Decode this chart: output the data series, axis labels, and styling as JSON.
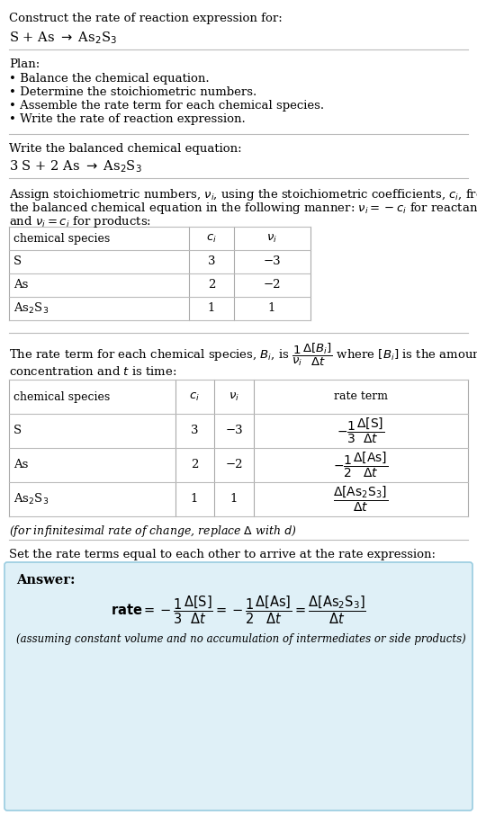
{
  "title_line1": "Construct the rate of reaction expression for:",
  "plan_header": "Plan:",
  "plan_items": [
    "• Balance the chemical equation.",
    "• Determine the stoichiometric numbers.",
    "• Assemble the rate term for each chemical species.",
    "• Write the rate of reaction expression."
  ],
  "balanced_header": "Write the balanced chemical equation:",
  "stoich_intro_parts": [
    "Assign stoichiometric numbers, ",
    "i",
    ", using the stoichiometric coefficients, ",
    "i",
    ", from",
    "the balanced chemical equation in the following manner: ",
    "i",
    " = −",
    "i",
    " for reactants",
    "and ",
    "i",
    " = ",
    "i",
    " for products:"
  ],
  "table1_headers": [
    "chemical species",
    "c_i",
    "v_i"
  ],
  "table1_rows": [
    [
      "S",
      "3",
      "−3"
    ],
    [
      "As",
      "2",
      "−2"
    ],
    [
      "As₂S₃",
      "1",
      "1"
    ]
  ],
  "table2_headers": [
    "chemical species",
    "c_i",
    "v_i",
    "rate term"
  ],
  "table2_rows": [
    [
      "S",
      "3",
      "−3"
    ],
    [
      "As",
      "2",
      "−2"
    ],
    [
      "As₂S₃",
      "1",
      "1"
    ]
  ],
  "infinitesimal_note": "(for infinitesimal rate of change, replace Δ with d)",
  "set_equal_text": "Set the rate terms equal to each other to arrive at the rate expression:",
  "answer_label": "Answer:",
  "answer_note": "(assuming constant volume and no accumulation of intermediates or side products)",
  "bg_color": "#ffffff",
  "answer_bg_color": "#dff0f7",
  "divider_color": "#bbbbbb",
  "text_color": "#000000",
  "table_line_color": "#aaaaaa"
}
